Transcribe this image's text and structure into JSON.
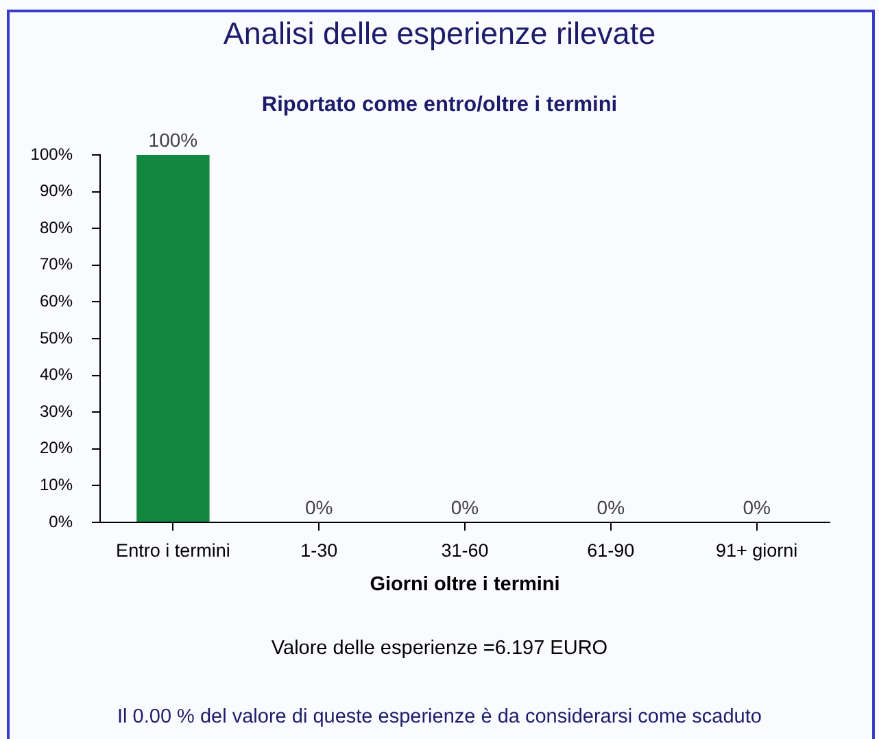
{
  "chart_data": {
    "type": "bar",
    "title": "Analisi delle esperienze rilevate",
    "subtitle": "Riportato come entro/oltre i termini",
    "xlabel": "Giorni oltre i termini",
    "categories": [
      "Entro i termini",
      "1-30",
      "31-60",
      "61-90",
      "91+ giorni"
    ],
    "values": [
      100,
      0,
      0,
      0,
      0
    ],
    "color": "#12873f",
    "value_labels": [
      "100%",
      "0%",
      "0%",
      "0%",
      "0%"
    ],
    "ylim": [
      0,
      100
    ],
    "yticks": [
      {
        "value": 0,
        "label": "0%"
      },
      {
        "value": 10,
        "label": "10%"
      },
      {
        "value": 20,
        "label": "20%"
      },
      {
        "value": 30,
        "label": "30%"
      },
      {
        "value": 40,
        "label": "40%"
      },
      {
        "value": 50,
        "label": "50%"
      },
      {
        "value": 60,
        "label": "60%"
      },
      {
        "value": 70,
        "label": "70%"
      },
      {
        "value": 80,
        "label": "80%"
      },
      {
        "value": 90,
        "label": "90%"
      },
      {
        "value": 100,
        "label": "100%"
      }
    ],
    "grid": false,
    "legend": false,
    "annotations": [
      "Valore delle esperienze =6.197 EURO",
      "Il 0.00 % del valore di queste esperienze è da considerarsi come scaduto"
    ]
  }
}
